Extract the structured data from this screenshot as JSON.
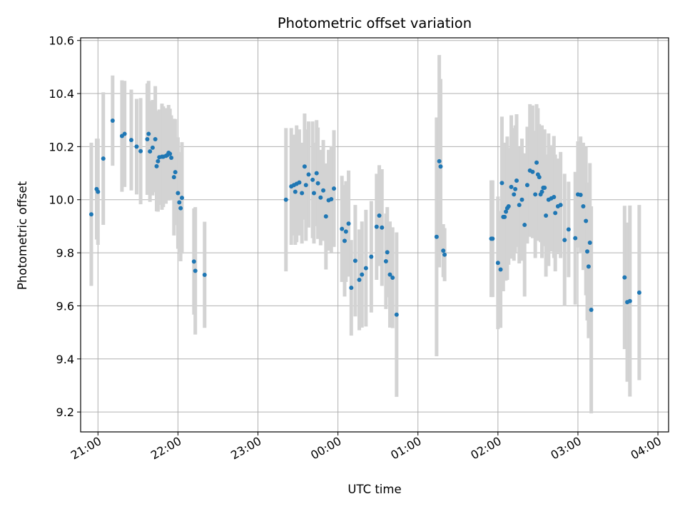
{
  "chart_data": {
    "type": "scatter",
    "title": "Photometric offset variation",
    "xlabel": "UTC time",
    "ylabel": "Photometric offset",
    "x_unit": "UTC time (HH:MM, 20:00 onward, wrapping past midnight)",
    "xlim": [
      "20:47",
      "04:08"
    ],
    "ylim": [
      9.125,
      10.61
    ],
    "x_ticks": [
      "21:00",
      "22:00",
      "23:00",
      "00:00",
      "01:00",
      "02:00",
      "03:00",
      "04:00"
    ],
    "y_ticks": [
      9.2,
      9.4,
      9.6,
      9.8,
      10.0,
      10.2,
      10.4,
      10.6
    ],
    "grid": true,
    "colors": {
      "points": "#1f77b4",
      "errorbars": "#d3d3d3",
      "grid": "#b0b0b0"
    },
    "series": [
      {
        "x": [
          "20:55",
          "20:59",
          "21:00",
          "21:04",
          "21:11",
          "21:18",
          "21:20",
          "21:25",
          "21:29",
          "21:32",
          "21:37",
          "21:38",
          "21:39",
          "21:41",
          "21:43",
          "21:44",
          "21:45",
          "21:46",
          "21:48",
          "21:49",
          "21:51",
          "21:52",
          "21:53",
          "21:54",
          "21:55",
          "21:57",
          "21:58",
          "22:00",
          "22:01",
          "22:02",
          "22:03",
          "22:12",
          "22:13",
          "22:20",
          "23:21",
          "23:25",
          "23:27",
          "23:28",
          "23:29",
          "23:31",
          "23:33",
          "23:35",
          "23:36",
          "23:38",
          "23:41",
          "23:42",
          "23:44",
          "23:45",
          "23:47",
          "23:49",
          "23:51",
          "23:53",
          "23:55",
          "23:57",
          "00:03",
          "00:05",
          "00:06",
          "00:08",
          "00:10",
          "00:13",
          "00:16",
          "00:18",
          "00:21",
          "00:25",
          "00:29",
          "00:31",
          "00:33",
          "00:36",
          "00:37",
          "00:39",
          "00:41",
          "00:44",
          "01:14",
          "01:16",
          "01:17",
          "01:19",
          "01:20",
          "01:55",
          "01:56",
          "02:00",
          "02:02",
          "02:03",
          "02:04",
          "02:05",
          "02:06",
          "02:07",
          "02:08",
          "02:10",
          "02:12",
          "02:13",
          "02:14",
          "02:16",
          "02:18",
          "02:20",
          "02:22",
          "02:24",
          "02:26",
          "02:28",
          "02:29",
          "02:30",
          "02:31",
          "02:32",
          "02:33",
          "02:34",
          "02:35",
          "02:36",
          "02:38",
          "02:40",
          "02:42",
          "02:43",
          "02:45",
          "02:47",
          "02:50",
          "02:53",
          "02:58",
          "03:00",
          "03:02",
          "03:04",
          "03:06",
          "03:07",
          "03:08",
          "03:09",
          "03:10",
          "03:35",
          "03:37",
          "03:39",
          "03:46"
        ],
        "y": [
          9.945,
          10.04,
          10.03,
          10.155,
          10.298,
          10.24,
          10.248,
          10.225,
          10.2,
          10.183,
          10.228,
          10.248,
          10.182,
          10.196,
          10.228,
          10.126,
          10.145,
          10.16,
          10.162,
          10.162,
          10.165,
          10.168,
          10.177,
          10.173,
          10.158,
          10.085,
          10.104,
          10.025,
          9.99,
          9.968,
          10.007,
          9.767,
          9.732,
          9.717,
          10.0,
          10.05,
          10.055,
          10.03,
          10.06,
          10.065,
          10.025,
          10.125,
          10.055,
          10.095,
          10.075,
          10.025,
          10.1,
          10.062,
          10.008,
          10.035,
          9.937,
          9.998,
          10.002,
          10.042,
          9.89,
          9.845,
          9.88,
          9.91,
          9.668,
          9.77,
          9.698,
          9.718,
          9.742,
          9.785,
          9.898,
          9.94,
          9.895,
          9.768,
          9.802,
          9.718,
          9.706,
          9.567,
          9.86,
          10.145,
          10.125,
          9.808,
          9.793,
          9.853,
          9.853,
          9.762,
          9.737,
          10.063,
          9.935,
          9.935,
          9.955,
          9.968,
          9.975,
          10.048,
          10.02,
          10.04,
          10.072,
          9.98,
          10.0,
          9.905,
          10.055,
          10.11,
          10.105,
          10.02,
          10.14,
          10.095,
          10.085,
          10.02,
          10.03,
          10.045,
          10.045,
          9.94,
          10.0,
          10.005,
          10.01,
          9.95,
          9.975,
          9.98,
          9.848,
          9.888,
          9.855,
          10.02,
          10.018,
          9.975,
          9.92,
          9.805,
          9.748,
          9.838,
          9.585,
          9.707,
          9.614,
          9.618,
          9.65
        ],
        "err": [
          0.27,
          0.19,
          0.2,
          0.25,
          0.17,
          0.21,
          0.2,
          0.19,
          0.18,
          0.2,
          0.21,
          0.2,
          0.19,
          0.18,
          0.2,
          0.17,
          0.19,
          0.18,
          0.2,
          0.19,
          0.18,
          0.17,
          0.18,
          0.17,
          0.16,
          0.22,
          0.2,
          0.21,
          0.19,
          0.2,
          0.21,
          0.2,
          0.24,
          0.2,
          0.27,
          0.22,
          0.19,
          0.2,
          0.22,
          0.2,
          0.19,
          0.2,
          0.21,
          0.2,
          0.22,
          0.19,
          0.2,
          0.21,
          0.18,
          0.19,
          0.2,
          0.19,
          0.2,
          0.22,
          0.2,
          0.21,
          0.19,
          0.2,
          0.18,
          0.21,
          0.19,
          0.2,
          0.22,
          0.21,
          0.2,
          0.19,
          0.22,
          0.18,
          0.17,
          0.2,
          0.19,
          0.31,
          0.45,
          0.4,
          0.33,
          0.1,
          0.1,
          0.22,
          0.22,
          0.25,
          0.22,
          0.25,
          0.28,
          0.24,
          0.26,
          0.27,
          0.22,
          0.27,
          0.25,
          0.24,
          0.25,
          0.22,
          0.23,
          0.27,
          0.22,
          0.25,
          0.25,
          0.24,
          0.22,
          0.25,
          0.2,
          0.18,
          0.25,
          0.2,
          0.22,
          0.23,
          0.25,
          0.2,
          0.23,
          0.22,
          0.18,
          0.2,
          0.25,
          0.18,
          0.25,
          0.2,
          0.22,
          0.24,
          0.28,
          0.26,
          0.27,
          0.3,
          0.39,
          0.27,
          0.3,
          0.36,
          0.33
        ]
      }
    ]
  }
}
